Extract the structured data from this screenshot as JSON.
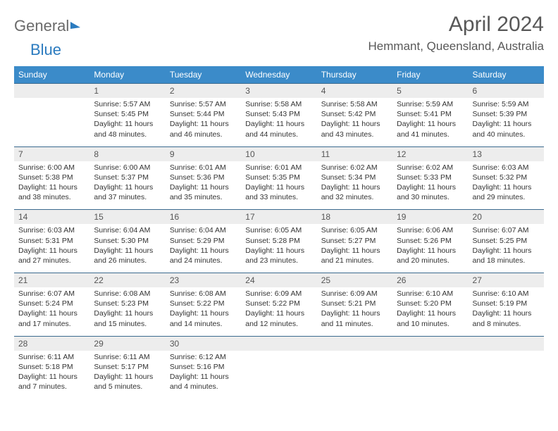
{
  "logo": {
    "part1": "General",
    "part2": "Blue"
  },
  "title": "April 2024",
  "location": "Hemmant, Queensland, Australia",
  "colors": {
    "header_bg": "#3b8bc9",
    "header_text": "#ffffff",
    "numrow_bg": "#ededed",
    "numrow_border": "#3b6a8f",
    "title_color": "#585858",
    "text_color": "#333333",
    "logo_gray": "#6a6a6a",
    "logo_blue": "#2b7bbf"
  },
  "day_names": [
    "Sunday",
    "Monday",
    "Tuesday",
    "Wednesday",
    "Thursday",
    "Friday",
    "Saturday"
  ],
  "weeks": [
    {
      "nums": [
        "",
        "1",
        "2",
        "3",
        "4",
        "5",
        "6"
      ],
      "cells": [
        {},
        {
          "sr": "Sunrise: 5:57 AM",
          "ss": "Sunset: 5:45 PM",
          "dl": "Daylight: 11 hours and 48 minutes."
        },
        {
          "sr": "Sunrise: 5:57 AM",
          "ss": "Sunset: 5:44 PM",
          "dl": "Daylight: 11 hours and 46 minutes."
        },
        {
          "sr": "Sunrise: 5:58 AM",
          "ss": "Sunset: 5:43 PM",
          "dl": "Daylight: 11 hours and 44 minutes."
        },
        {
          "sr": "Sunrise: 5:58 AM",
          "ss": "Sunset: 5:42 PM",
          "dl": "Daylight: 11 hours and 43 minutes."
        },
        {
          "sr": "Sunrise: 5:59 AM",
          "ss": "Sunset: 5:41 PM",
          "dl": "Daylight: 11 hours and 41 minutes."
        },
        {
          "sr": "Sunrise: 5:59 AM",
          "ss": "Sunset: 5:39 PM",
          "dl": "Daylight: 11 hours and 40 minutes."
        }
      ]
    },
    {
      "nums": [
        "7",
        "8",
        "9",
        "10",
        "11",
        "12",
        "13"
      ],
      "cells": [
        {
          "sr": "Sunrise: 6:00 AM",
          "ss": "Sunset: 5:38 PM",
          "dl": "Daylight: 11 hours and 38 minutes."
        },
        {
          "sr": "Sunrise: 6:00 AM",
          "ss": "Sunset: 5:37 PM",
          "dl": "Daylight: 11 hours and 37 minutes."
        },
        {
          "sr": "Sunrise: 6:01 AM",
          "ss": "Sunset: 5:36 PM",
          "dl": "Daylight: 11 hours and 35 minutes."
        },
        {
          "sr": "Sunrise: 6:01 AM",
          "ss": "Sunset: 5:35 PM",
          "dl": "Daylight: 11 hours and 33 minutes."
        },
        {
          "sr": "Sunrise: 6:02 AM",
          "ss": "Sunset: 5:34 PM",
          "dl": "Daylight: 11 hours and 32 minutes."
        },
        {
          "sr": "Sunrise: 6:02 AM",
          "ss": "Sunset: 5:33 PM",
          "dl": "Daylight: 11 hours and 30 minutes."
        },
        {
          "sr": "Sunrise: 6:03 AM",
          "ss": "Sunset: 5:32 PM",
          "dl": "Daylight: 11 hours and 29 minutes."
        }
      ]
    },
    {
      "nums": [
        "14",
        "15",
        "16",
        "17",
        "18",
        "19",
        "20"
      ],
      "cells": [
        {
          "sr": "Sunrise: 6:03 AM",
          "ss": "Sunset: 5:31 PM",
          "dl": "Daylight: 11 hours and 27 minutes."
        },
        {
          "sr": "Sunrise: 6:04 AM",
          "ss": "Sunset: 5:30 PM",
          "dl": "Daylight: 11 hours and 26 minutes."
        },
        {
          "sr": "Sunrise: 6:04 AM",
          "ss": "Sunset: 5:29 PM",
          "dl": "Daylight: 11 hours and 24 minutes."
        },
        {
          "sr": "Sunrise: 6:05 AM",
          "ss": "Sunset: 5:28 PM",
          "dl": "Daylight: 11 hours and 23 minutes."
        },
        {
          "sr": "Sunrise: 6:05 AM",
          "ss": "Sunset: 5:27 PM",
          "dl": "Daylight: 11 hours and 21 minutes."
        },
        {
          "sr": "Sunrise: 6:06 AM",
          "ss": "Sunset: 5:26 PM",
          "dl": "Daylight: 11 hours and 20 minutes."
        },
        {
          "sr": "Sunrise: 6:07 AM",
          "ss": "Sunset: 5:25 PM",
          "dl": "Daylight: 11 hours and 18 minutes."
        }
      ]
    },
    {
      "nums": [
        "21",
        "22",
        "23",
        "24",
        "25",
        "26",
        "27"
      ],
      "cells": [
        {
          "sr": "Sunrise: 6:07 AM",
          "ss": "Sunset: 5:24 PM",
          "dl": "Daylight: 11 hours and 17 minutes."
        },
        {
          "sr": "Sunrise: 6:08 AM",
          "ss": "Sunset: 5:23 PM",
          "dl": "Daylight: 11 hours and 15 minutes."
        },
        {
          "sr": "Sunrise: 6:08 AM",
          "ss": "Sunset: 5:22 PM",
          "dl": "Daylight: 11 hours and 14 minutes."
        },
        {
          "sr": "Sunrise: 6:09 AM",
          "ss": "Sunset: 5:22 PM",
          "dl": "Daylight: 11 hours and 12 minutes."
        },
        {
          "sr": "Sunrise: 6:09 AM",
          "ss": "Sunset: 5:21 PM",
          "dl": "Daylight: 11 hours and 11 minutes."
        },
        {
          "sr": "Sunrise: 6:10 AM",
          "ss": "Sunset: 5:20 PM",
          "dl": "Daylight: 11 hours and 10 minutes."
        },
        {
          "sr": "Sunrise: 6:10 AM",
          "ss": "Sunset: 5:19 PM",
          "dl": "Daylight: 11 hours and 8 minutes."
        }
      ]
    },
    {
      "nums": [
        "28",
        "29",
        "30",
        "",
        "",
        "",
        ""
      ],
      "cells": [
        {
          "sr": "Sunrise: 6:11 AM",
          "ss": "Sunset: 5:18 PM",
          "dl": "Daylight: 11 hours and 7 minutes."
        },
        {
          "sr": "Sunrise: 6:11 AM",
          "ss": "Sunset: 5:17 PM",
          "dl": "Daylight: 11 hours and 5 minutes."
        },
        {
          "sr": "Sunrise: 6:12 AM",
          "ss": "Sunset: 5:16 PM",
          "dl": "Daylight: 11 hours and 4 minutes."
        },
        {},
        {},
        {},
        {}
      ]
    }
  ]
}
